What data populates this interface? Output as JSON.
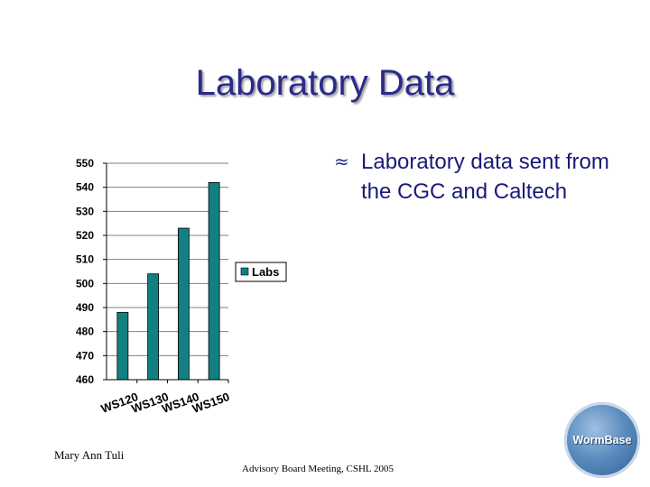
{
  "slide": {
    "title": "Laboratory Data",
    "bullet_symbol": "≈",
    "bullet_text": "Laboratory data sent from the CGC and Caltech",
    "footer_left": "Mary Ann Tuli",
    "footer_center": "Advisory Board Meeting, CSHL 2005",
    "logo_text": "WormBase"
  },
  "colors": {
    "bar": "#128080",
    "title": "#2a2a8c",
    "gridline": "#808080"
  },
  "chart_data": {
    "type": "bar",
    "categories": [
      "WS120",
      "WS130",
      "WS140",
      "WS150"
    ],
    "series": [
      {
        "name": "Labs",
        "values": [
          488,
          504,
          523,
          542
        ]
      }
    ],
    "ylim": [
      460,
      550
    ],
    "yticks": [
      "460",
      "470",
      "480",
      "490",
      "500",
      "510",
      "520",
      "530",
      "540",
      "550"
    ],
    "grid": true,
    "legend": "right"
  }
}
